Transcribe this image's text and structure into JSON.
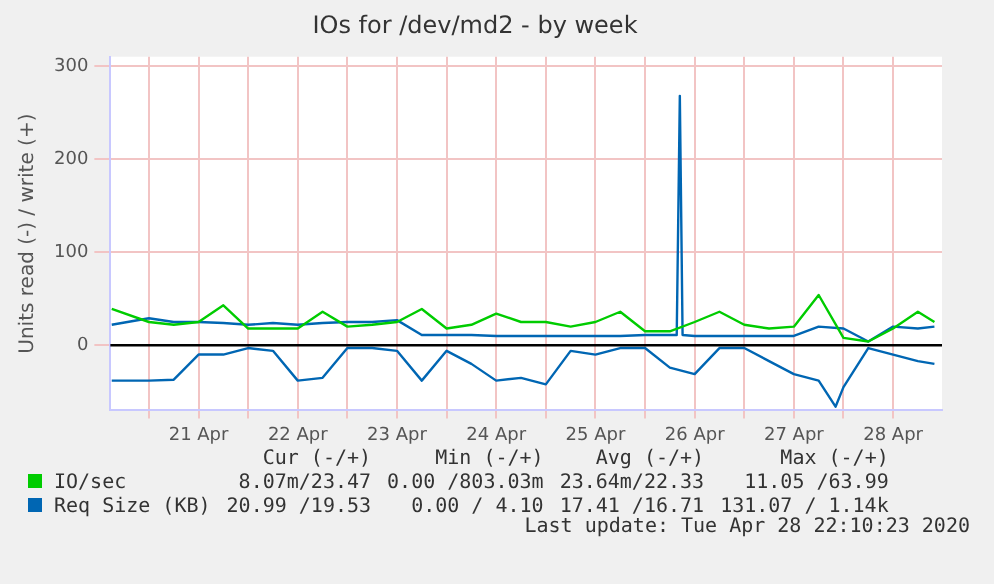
{
  "chart_data": {
    "type": "line",
    "title": "IOs for /dev/md2 - by week",
    "ylabel": "Units read (-) / write (+)",
    "ylim": [
      -70,
      310
    ],
    "yticks": [
      0,
      100,
      200,
      300
    ],
    "xlim": [
      "2020-04-20T14:40",
      "2020-04-28T23:50"
    ],
    "xticks": [
      {
        "value": "2020-04-21T00:00",
        "label": null
      },
      {
        "value": "2020-04-21T12:00",
        "label": "21 Apr"
      },
      {
        "value": "2020-04-22T00:00",
        "label": null
      },
      {
        "value": "2020-04-22T12:00",
        "label": "22 Apr"
      },
      {
        "value": "2020-04-23T00:00",
        "label": null
      },
      {
        "value": "2020-04-23T12:00",
        "label": "23 Apr"
      },
      {
        "value": "2020-04-24T00:00",
        "label": null
      },
      {
        "value": "2020-04-24T12:00",
        "label": "24 Apr"
      },
      {
        "value": "2020-04-25T00:00",
        "label": null
      },
      {
        "value": "2020-04-25T12:00",
        "label": "25 Apr"
      },
      {
        "value": "2020-04-26T00:00",
        "label": null
      },
      {
        "value": "2020-04-26T12:00",
        "label": "26 Apr"
      },
      {
        "value": "2020-04-27T00:00",
        "label": null
      },
      {
        "value": "2020-04-27T12:00",
        "label": "27 Apr"
      },
      {
        "value": "2020-04-28T00:00",
        "label": null
      },
      {
        "value": "2020-04-28T12:00",
        "label": "28 Apr"
      }
    ],
    "grid": true,
    "legend": "bottom",
    "marker": "none",
    "line_style": "solid",
    "ref_lines": [
      {
        "axis": "y",
        "value": 0,
        "color": "#000000"
      }
    ],
    "series": [
      {
        "name": "IO/sec",
        "color": "#00cc00",
        "x": [
          "2020-04-20T15:00",
          "2020-04-21T00:00",
          "2020-04-21T06:00",
          "2020-04-21T12:00",
          "2020-04-21T18:00",
          "2020-04-22T00:00",
          "2020-04-22T06:00",
          "2020-04-22T12:00",
          "2020-04-22T18:00",
          "2020-04-23T00:00",
          "2020-04-23T06:00",
          "2020-04-23T12:00",
          "2020-04-23T18:00",
          "2020-04-24T00:00",
          "2020-04-24T06:00",
          "2020-04-24T12:00",
          "2020-04-24T18:00",
          "2020-04-25T00:00",
          "2020-04-25T06:00",
          "2020-04-25T12:00",
          "2020-04-25T18:00",
          "2020-04-26T00:00",
          "2020-04-26T06:00",
          "2020-04-26T12:00",
          "2020-04-26T18:00",
          "2020-04-27T00:00",
          "2020-04-27T06:00",
          "2020-04-27T12:00",
          "2020-04-27T18:00",
          "2020-04-28T00:00",
          "2020-04-28T06:00",
          "2020-04-28T12:00",
          "2020-04-28T18:00",
          "2020-04-28T22:00"
        ],
        "values": [
          39,
          25,
          22,
          25,
          43,
          18,
          18,
          18,
          36,
          20,
          22,
          25,
          39,
          18,
          22,
          34,
          25,
          25,
          20,
          25,
          36,
          15,
          15,
          25,
          36,
          22,
          18,
          20,
          54,
          8,
          4,
          18,
          36,
          25
        ]
      },
      {
        "name": "Req Size (KB)",
        "color": "#0066b3",
        "x": [
          "2020-04-20T15:00",
          "2020-04-21T00:00",
          "2020-04-21T06:00",
          "2020-04-21T12:00",
          "2020-04-21T18:00",
          "2020-04-22T00:00",
          "2020-04-22T06:00",
          "2020-04-22T12:00",
          "2020-04-22T18:00",
          "2020-04-23T00:00",
          "2020-04-23T06:00",
          "2020-04-23T12:00",
          "2020-04-23T18:00",
          "2020-04-24T00:00",
          "2020-04-24T06:00",
          "2020-04-24T12:00",
          "2020-04-24T18:00",
          "2020-04-25T00:00",
          "2020-04-25T06:00",
          "2020-04-25T12:00",
          "2020-04-25T18:00",
          "2020-04-26T00:00",
          "2020-04-26T06:00",
          "2020-04-26T07:40",
          "2020-04-26T08:25",
          "2020-04-26T09:05",
          "2020-04-26T12:00",
          "2020-04-26T18:00",
          "2020-04-27T00:00",
          "2020-04-27T06:00",
          "2020-04-27T12:00",
          "2020-04-27T18:00",
          "2020-04-28T00:00",
          "2020-04-28T06:00",
          "2020-04-28T12:00",
          "2020-04-28T18:00",
          "2020-04-28T22:00"
        ],
        "values": [
          22,
          29,
          25,
          25,
          24,
          22,
          24,
          22,
          24,
          25,
          25,
          27,
          11,
          11,
          11,
          10,
          10,
          10,
          10,
          10,
          10,
          11,
          11,
          11,
          268,
          11,
          10,
          10,
          10,
          10,
          10,
          20,
          18,
          4,
          20,
          18,
          20
        ]
      },
      {
        "color": "#0066b3",
        "x": [
          "2020-04-20T15:00",
          "2020-04-21T00:00",
          "2020-04-21T06:00",
          "2020-04-21T12:00",
          "2020-04-21T18:00",
          "2020-04-22T00:00",
          "2020-04-22T06:00",
          "2020-04-22T12:00",
          "2020-04-22T18:00",
          "2020-04-23T00:00",
          "2020-04-23T06:00",
          "2020-04-23T12:00",
          "2020-04-23T18:00",
          "2020-04-24T00:00",
          "2020-04-24T06:00",
          "2020-04-24T12:00",
          "2020-04-24T18:00",
          "2020-04-25T00:00",
          "2020-04-25T06:00",
          "2020-04-25T12:00",
          "2020-04-25T18:00",
          "2020-04-26T00:00",
          "2020-04-26T06:00",
          "2020-04-26T12:00",
          "2020-04-26T18:00",
          "2020-04-27T00:00",
          "2020-04-27T06:00",
          "2020-04-27T12:00",
          "2020-04-27T18:00",
          "2020-04-27T22:05",
          "2020-04-28T00:00",
          "2020-04-28T06:00",
          "2020-04-28T12:00",
          "2020-04-28T18:00",
          "2020-04-28T22:00"
        ],
        "values": [
          -38,
          -38,
          -37,
          -10,
          -10,
          -3,
          -6,
          -38,
          -35,
          -3,
          -3,
          -6,
          -38,
          -6,
          -20,
          -38,
          -35,
          -42,
          -6,
          -10,
          -3,
          -3,
          -24,
          -31,
          -3,
          -3,
          -17,
          -31,
          -38,
          -66,
          -45,
          -3,
          -10,
          -17,
          -20
        ]
      }
    ],
    "annotations": [
      "Cur (-/+)",
      "Min (-/+)",
      "Avg (-/+)",
      "Max (-/+)",
      "8.07m/23.47",
      "0.00 /803.03m",
      "23.64m/22.33",
      "11.05 /63.99",
      "20.99 /19.53",
      "0.00 / 4.10",
      "17.41 /16.71",
      "131.07 / 1.14k",
      "Last update: Tue Apr 28 22:10:23 2020"
    ]
  }
}
